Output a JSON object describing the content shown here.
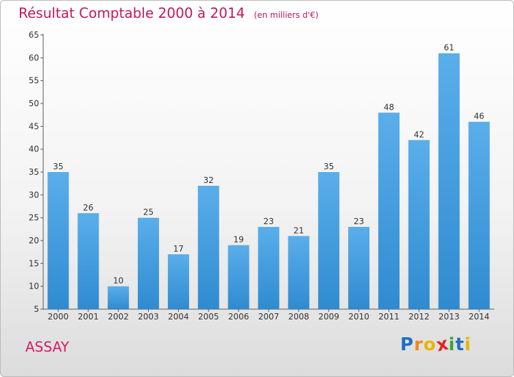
{
  "chart_data": {
    "type": "bar",
    "title": "Résultat Comptable 2000 à 2014",
    "unit": "(en milliers d'€)",
    "categories": [
      "2000",
      "2001",
      "2002",
      "2003",
      "2004",
      "2005",
      "2006",
      "2007",
      "2008",
      "2009",
      "2010",
      "2011",
      "2012",
      "2013",
      "2014"
    ],
    "values": [
      35,
      26,
      10,
      25,
      17,
      32,
      19,
      23,
      21,
      35,
      23,
      48,
      42,
      61,
      46
    ],
    "ylim": [
      5,
      65
    ],
    "yticks": [
      5,
      10,
      15,
      20,
      25,
      30,
      35,
      40,
      45,
      50,
      55,
      60,
      65
    ],
    "grid": false,
    "bar_color": "#2f8bd0"
  },
  "footer": {
    "commune": "ASSAY",
    "logo_letters": [
      "P",
      "r",
      "o",
      "x",
      "i",
      "t",
      "i"
    ],
    "logo_colors": [
      "#1e6fc4",
      "#f08a1c",
      "#e8b400",
      "#e32427",
      "#3aa538",
      "#1e6fc4",
      "#e8b400"
    ]
  }
}
